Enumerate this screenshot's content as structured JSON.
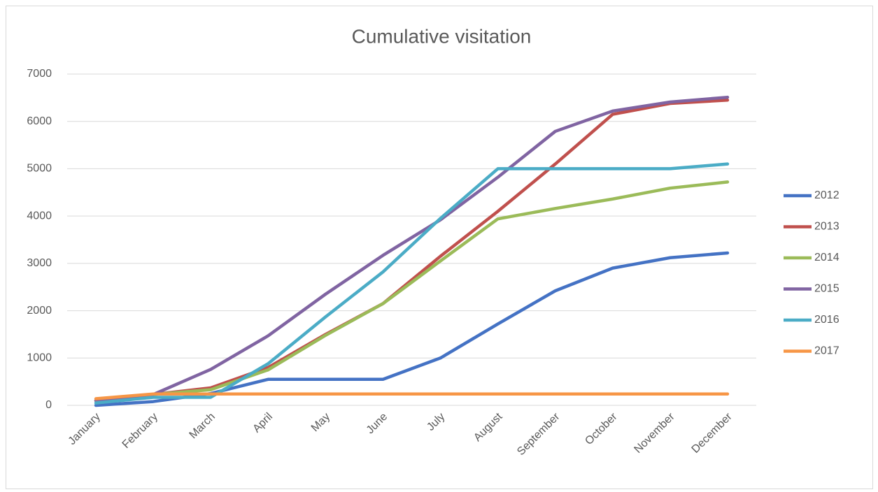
{
  "chart_data": {
    "type": "line",
    "title": "Cumulative visitation",
    "categories": [
      "January",
      "February",
      "March",
      "April",
      "May",
      "June",
      "July",
      "August",
      "September",
      "October",
      "November",
      "December"
    ],
    "series": [
      {
        "name": "2012",
        "color": "#4472c4",
        "values": [
          0,
          80,
          250,
          550,
          550,
          550,
          1000,
          1720,
          2420,
          2900,
          3120,
          3220
        ]
      },
      {
        "name": "2013",
        "color": "#c0504d",
        "values": [
          100,
          230,
          370,
          800,
          1500,
          2150,
          3150,
          4100,
          5100,
          6150,
          6380,
          6450
        ]
      },
      {
        "name": "2014",
        "color": "#9bbb59",
        "values": [
          100,
          230,
          330,
          750,
          1480,
          2150,
          3050,
          3940,
          4160,
          4360,
          4590,
          4720
        ]
      },
      {
        "name": "2015",
        "color": "#8064a2",
        "values": [
          100,
          230,
          760,
          1470,
          2350,
          3170,
          3920,
          4820,
          5790,
          6220,
          6410,
          6510
        ]
      },
      {
        "name": "2016",
        "color": "#4bacc6",
        "values": [
          50,
          170,
          170,
          880,
          1870,
          2820,
          3950,
          5000,
          5000,
          5000,
          5000,
          5100
        ]
      },
      {
        "name": "2017",
        "color": "#f79646",
        "values": [
          140,
          240,
          240,
          240,
          240,
          240,
          240,
          240,
          240,
          240,
          240,
          240
        ]
      }
    ],
    "ylim": [
      0,
      7000
    ],
    "yticks": [
      0,
      1000,
      2000,
      3000,
      4000,
      5000,
      6000,
      7000
    ],
    "grid": true,
    "legend": "right"
  }
}
